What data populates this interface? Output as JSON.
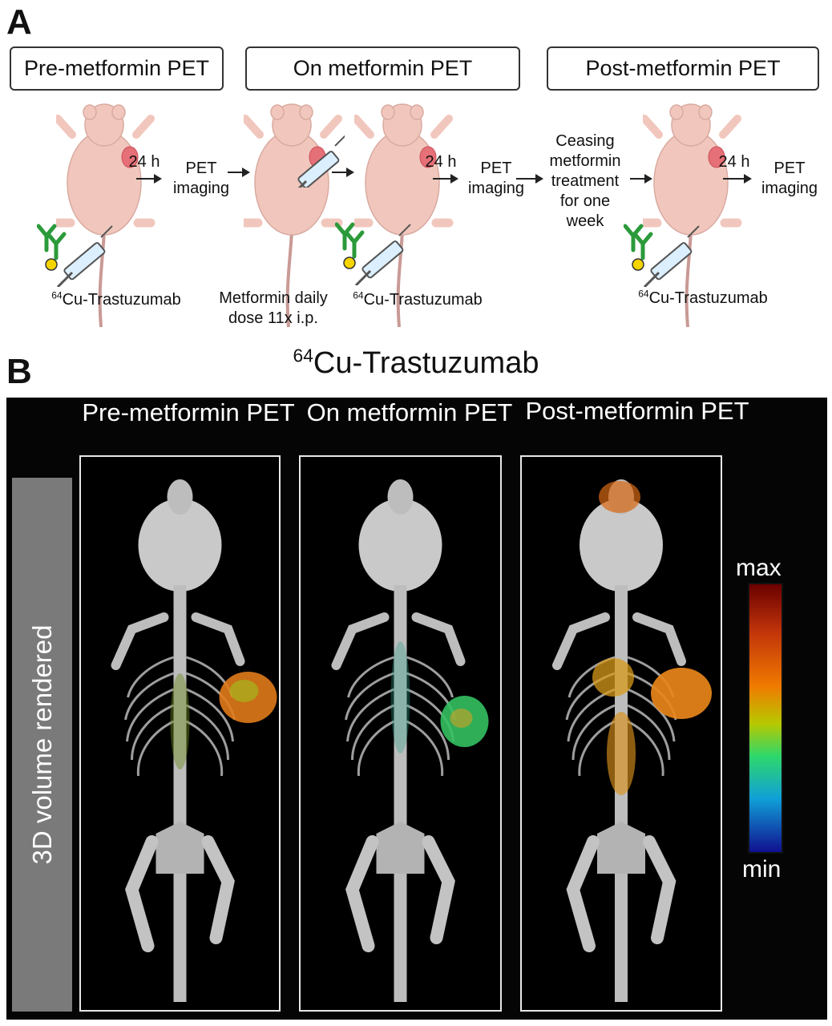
{
  "panelA": {
    "letter": "A",
    "phases": [
      "Pre-metformin PET",
      "On metformin PET",
      "Post-metformin PET"
    ],
    "interval": "24 h",
    "pet_imaging": "PET imaging",
    "tracer_sup": "64",
    "tracer_name": "Cu-Trastuzumab",
    "metformin_dose": "Metformin daily dose 11x i.p.",
    "ceasing": "Ceasing metformin treatment for one week"
  },
  "panelB": {
    "letter": "B",
    "title_sup": "64",
    "title_name": "Cu-Trastuzumab",
    "columns": [
      "Pre-metformin PET",
      "On metformin PET",
      "Post-metformin PET"
    ],
    "side_label": "3D volume rendered",
    "colorbar": {
      "max": "max",
      "min": "min",
      "colors": [
        "#6b0000",
        "#c2350a",
        "#f07a00",
        "#b8c800",
        "#2fd86a",
        "#10a0d8",
        "#101090"
      ]
    }
  }
}
